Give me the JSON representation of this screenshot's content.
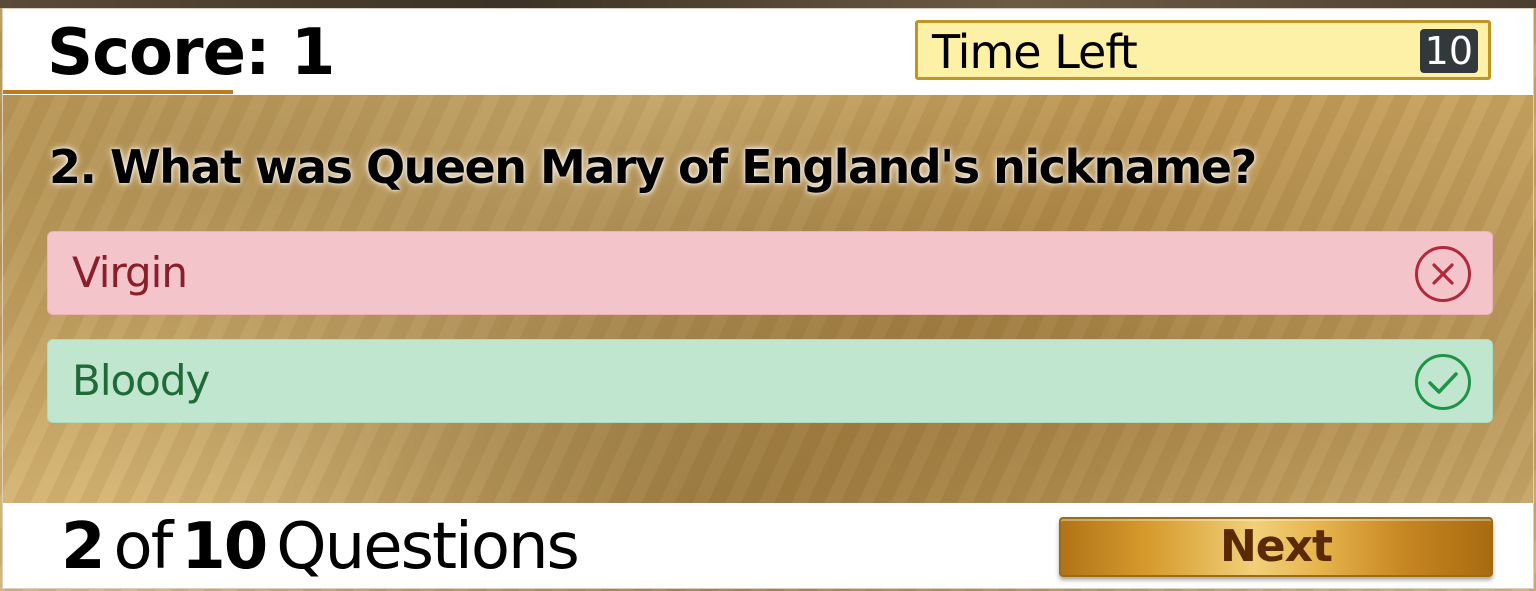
{
  "header": {
    "score_text": "Score: 1",
    "time_label": "Time Left",
    "time_value": "10"
  },
  "question": {
    "text": "2. What was Queen Mary of England's nickname?"
  },
  "options": [
    {
      "label": "Virgin",
      "state": "incorrect",
      "icon": "x-circle-icon"
    },
    {
      "label": "Bloody",
      "state": "correct",
      "icon": "check-circle-icon"
    }
  ],
  "footer": {
    "current": "2",
    "of_word": "of",
    "total": "10",
    "questions_word": "Questions",
    "next_label": "Next"
  },
  "colors": {
    "accent_gold": "#c19424",
    "wrong_bg": "#f4c4cb",
    "wrong_fg": "#b3283a",
    "correct_bg": "#c0e6d0",
    "correct_fg": "#1d9446"
  }
}
